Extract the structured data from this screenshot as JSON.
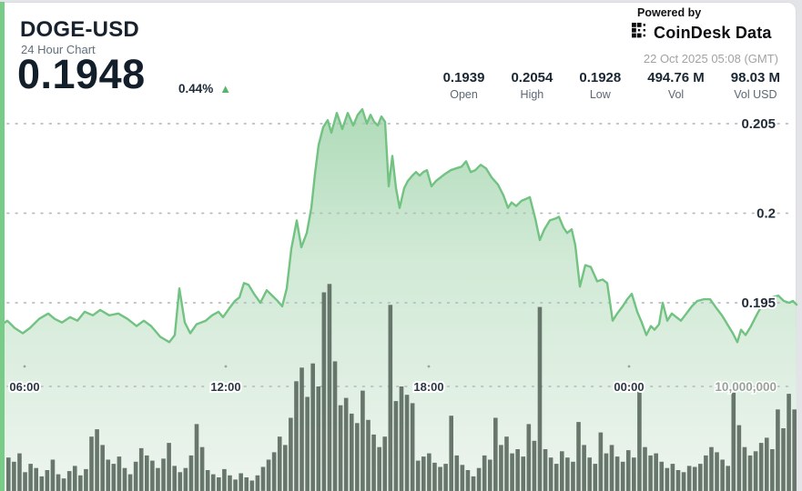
{
  "page": {
    "background": "#e3e4e8",
    "card_background": "#ffffff",
    "accent_stripe_color": "#79cc87"
  },
  "header": {
    "title": "DOGE-USD",
    "subtitle": "24 Hour Chart",
    "price": "0.1948",
    "change_percent": "0.44%",
    "change_direction": "up",
    "up_arrow": "▲",
    "up_color": "#55b469",
    "powered_by": "Powered by",
    "brand": "CoinDesk Data",
    "timestamp": "22 Oct 2025 05:08 (GMT)"
  },
  "stats": {
    "columns": [
      {
        "value": "0.1939",
        "label": "Open"
      },
      {
        "value": "0.2054",
        "label": "High"
      },
      {
        "value": "0.1928",
        "label": "Low"
      },
      {
        "value": "494.76 M",
        "label": "Vol"
      },
      {
        "value": "98.03 M",
        "label": "Vol USD"
      }
    ]
  },
  "chart_data": {
    "type": "area",
    "title": "DOGE-USD 24 Hour Chart",
    "price_line_color": "#72c282",
    "area_fill_top": "#9fd4aa",
    "area_fill_bottom": "#edf4ee",
    "volume_bar_color": "#5e6d61",
    "grid": true,
    "y_axis": {
      "side": "right",
      "ticks": [
        {
          "label": "0.205",
          "value": 0.205
        },
        {
          "label": "0.2",
          "value": 0.2
        },
        {
          "label": "0.195",
          "value": 0.195
        }
      ]
    },
    "x_axis": {
      "labels": [
        "06:00",
        "12:00",
        "18:00",
        "00:00"
      ]
    },
    "volume_axis": {
      "label": "10,000,000",
      "value_millions": 10
    },
    "price_series_x_price": [
      [
        0,
        0.1937
      ],
      [
        8,
        0.194
      ],
      [
        16,
        0.1936
      ],
      [
        25,
        0.1933
      ],
      [
        33,
        0.1936
      ],
      [
        43,
        0.1941
      ],
      [
        53,
        0.1944
      ],
      [
        60,
        0.1941
      ],
      [
        68,
        0.1939
      ],
      [
        77,
        0.1942
      ],
      [
        85,
        0.194
      ],
      [
        93,
        0.1945
      ],
      [
        102,
        0.1943
      ],
      [
        110,
        0.1946
      ],
      [
        120,
        0.1943
      ],
      [
        130,
        0.1944
      ],
      [
        140,
        0.1941
      ],
      [
        150,
        0.1937
      ],
      [
        158,
        0.194
      ],
      [
        166,
        0.1937
      ],
      [
        176,
        0.1931
      ],
      [
        186,
        0.1928
      ],
      [
        192,
        0.1932
      ],
      [
        197,
        0.1958
      ],
      [
        203,
        0.1939
      ],
      [
        209,
        0.1933
      ],
      [
        216,
        0.1938
      ],
      [
        226,
        0.194
      ],
      [
        233,
        0.1943
      ],
      [
        240,
        0.1945
      ],
      [
        245,
        0.1942
      ],
      [
        252,
        0.1947
      ],
      [
        258,
        0.1951
      ],
      [
        263,
        0.1953
      ],
      [
        268,
        0.1961
      ],
      [
        273,
        0.196
      ],
      [
        279,
        0.1955
      ],
      [
        286,
        0.195
      ],
      [
        293,
        0.1957
      ],
      [
        299,
        0.1954
      ],
      [
        305,
        0.1951
      ],
      [
        310,
        0.1948
      ],
      [
        315,
        0.1958
      ],
      [
        320,
        0.198
      ],
      [
        326,
        0.1996
      ],
      [
        331,
        0.1981
      ],
      [
        337,
        0.1989
      ],
      [
        342,
        0.2003
      ],
      [
        346,
        0.2022
      ],
      [
        350,
        0.2038
      ],
      [
        355,
        0.2048
      ],
      [
        360,
        0.2052
      ],
      [
        364,
        0.2045
      ],
      [
        370,
        0.2056
      ],
      [
        376,
        0.2047
      ],
      [
        382,
        0.2056
      ],
      [
        388,
        0.2049
      ],
      [
        393,
        0.2055
      ],
      [
        398,
        0.2058
      ],
      [
        403,
        0.205
      ],
      [
        407,
        0.2055
      ],
      [
        411,
        0.2051
      ],
      [
        415,
        0.2049
      ],
      [
        419,
        0.2054
      ],
      [
        423,
        0.2051
      ],
      [
        427,
        0.2015
      ],
      [
        431,
        0.2032
      ],
      [
        435,
        0.2014
      ],
      [
        439,
        0.2003
      ],
      [
        444,
        0.2014
      ],
      [
        448,
        0.2018
      ],
      [
        453,
        0.2021
      ],
      [
        457,
        0.2023
      ],
      [
        461,
        0.2021
      ],
      [
        465,
        0.2023
      ],
      [
        469,
        0.2024
      ],
      [
        474,
        0.2015
      ],
      [
        479,
        0.2018
      ],
      [
        484,
        0.202
      ],
      [
        489,
        0.2022
      ],
      [
        495,
        0.2024
      ],
      [
        501,
        0.2025
      ],
      [
        507,
        0.2026
      ],
      [
        512,
        0.2029
      ],
      [
        517,
        0.2023
      ],
      [
        522,
        0.2024
      ],
      [
        528,
        0.2027
      ],
      [
        534,
        0.2025
      ],
      [
        540,
        0.202
      ],
      [
        547,
        0.2016
      ],
      [
        553,
        0.201
      ],
      [
        558,
        0.2003
      ],
      [
        562,
        0.2006
      ],
      [
        567,
        0.2004
      ],
      [
        573,
        0.2007
      ],
      [
        578,
        0.2008
      ],
      [
        582,
        0.2009
      ],
      [
        588,
        0.1997
      ],
      [
        593,
        0.1985
      ],
      [
        598,
        0.1991
      ],
      [
        604,
        0.1996
      ],
      [
        610,
        0.1997
      ],
      [
        614,
        0.1998
      ],
      [
        619,
        0.1992
      ],
      [
        623,
        0.1989
      ],
      [
        628,
        0.1991
      ],
      [
        632,
        0.1982
      ],
      [
        637,
        0.1959
      ],
      [
        643,
        0.1971
      ],
      [
        649,
        0.197
      ],
      [
        656,
        0.1962
      ],
      [
        662,
        0.1963
      ],
      [
        667,
        0.1961
      ],
      [
        673,
        0.194
      ],
      [
        678,
        0.1944
      ],
      [
        684,
        0.1948
      ],
      [
        689,
        0.1952
      ],
      [
        694,
        0.1955
      ],
      [
        700,
        0.1945
      ],
      [
        705,
        0.1939
      ],
      [
        710,
        0.1932
      ],
      [
        715,
        0.1937
      ],
      [
        719,
        0.1935
      ],
      [
        724,
        0.1938
      ],
      [
        728,
        0.195
      ],
      [
        733,
        0.194
      ],
      [
        738,
        0.1944
      ],
      [
        743,
        0.1942
      ],
      [
        748,
        0.194
      ],
      [
        754,
        0.1944
      ],
      [
        760,
        0.1948
      ],
      [
        766,
        0.1951
      ],
      [
        773,
        0.1952
      ],
      [
        780,
        0.1952
      ],
      [
        787,
        0.1947
      ],
      [
        793,
        0.1943
      ],
      [
        799,
        0.1938
      ],
      [
        805,
        0.1933
      ],
      [
        810,
        0.1928
      ],
      [
        814,
        0.1935
      ],
      [
        819,
        0.1932
      ],
      [
        825,
        0.1937
      ],
      [
        832,
        0.1944
      ],
      [
        840,
        0.1951
      ],
      [
        848,
        0.1953
      ],
      [
        855,
        0.1954
      ],
      [
        861,
        0.1951
      ],
      [
        867,
        0.195
      ],
      [
        871,
        0.1951
      ],
      [
        875,
        0.1949
      ]
    ],
    "volume_series_millions": [
      3.2,
      2.8,
      3.6,
      1.8,
      2.6,
      2.2,
      1.4,
      2.0,
      3.0,
      1.6,
      1.2,
      1.9,
      2.4,
      1.5,
      2.1,
      5.2,
      5.9,
      4.4,
      3.0,
      2.6,
      3.3,
      2.2,
      1.6,
      2.8,
      4.1,
      3.4,
      2.9,
      2.2,
      3.1,
      4.6,
      2.4,
      1.8,
      2.2,
      3.4,
      6.4,
      4.2,
      2.0,
      1.6,
      1.3,
      2.1,
      1.5,
      1.1,
      1.7,
      1.3,
      1.0,
      1.5,
      2.3,
      3.0,
      3.7,
      5.2,
      4.4,
      7.0,
      10.5,
      11.8,
      9.0,
      12.2,
      10.0,
      19.0,
      19.8,
      12.4,
      8.2,
      8.9,
      7.4,
      6.5,
      9.6,
      6.8,
      5.4,
      4.2,
      5.2,
      17.8,
      8.6,
      10.0,
      9.2,
      8.4,
      2.9,
      3.3,
      3.6,
      2.7,
      2.3,
      2.6,
      7.2,
      3.4,
      2.5,
      2.0,
      1.4,
      2.2,
      3.4,
      3.0,
      7.0,
      4.4,
      5.2,
      3.6,
      4.0,
      3.3,
      6.4,
      4.8,
      17.6,
      4.0,
      3.2,
      2.6,
      3.8,
      3.2,
      2.8,
      6.6,
      4.4,
      3.2,
      2.6,
      5.6,
      3.6,
      4.4,
      3.3,
      2.8,
      3.9,
      3.2,
      9.6,
      4.2,
      3.4,
      3.6,
      2.8,
      2.2,
      2.6,
      2.0,
      1.8,
      2.4,
      2.3,
      2.6,
      3.4,
      4.2,
      3.7,
      3.0,
      2.4,
      9.4,
      6.3,
      4.2,
      3.4,
      3.8,
      4.6,
      5.1,
      4.0,
      7.8,
      6.0,
      9.3,
      7.8
    ]
  }
}
